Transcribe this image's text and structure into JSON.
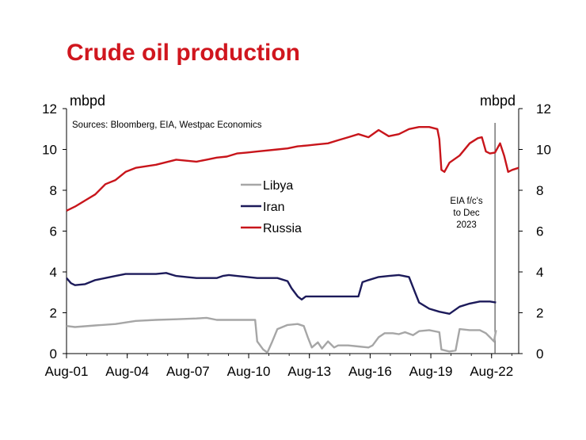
{
  "chart_data": {
    "type": "line",
    "title": "Crude oil production",
    "units_left": "mbpd",
    "units_right": "mbpd",
    "source": "Sources: Bloomberg, EIA, Westpac Economics",
    "annotation": [
      "EIA f/c's",
      "to Dec",
      "2023"
    ],
    "forecast_start": 2022.75,
    "ylim": [
      0,
      12
    ],
    "yticks": [
      "0",
      "2",
      "4",
      "6",
      "8",
      "10",
      "12"
    ],
    "xlim": [
      2001.58,
      2023.92
    ],
    "xticks": [
      {
        "label": "Aug-01",
        "x": 2001.58
      },
      {
        "label": "Aug-04",
        "x": 2004.58
      },
      {
        "label": "Aug-07",
        "x": 2007.58
      },
      {
        "label": "Aug-10",
        "x": 2010.58
      },
      {
        "label": "Aug-13",
        "x": 2013.58
      },
      {
        "label": "Aug-16",
        "x": 2016.58
      },
      {
        "label": "Aug-19",
        "x": 2019.58
      },
      {
        "label": "Aug-22",
        "x": 2022.58
      }
    ],
    "legend": {
      "placement": "center"
    },
    "series": [
      {
        "name": "Libya",
        "color": "#a6a6a6",
        "points": [
          [
            2001.58,
            1.35
          ],
          [
            2002.0,
            1.3
          ],
          [
            2003.0,
            1.38
          ],
          [
            2004.0,
            1.45
          ],
          [
            2005.0,
            1.6
          ],
          [
            2006.0,
            1.65
          ],
          [
            2007.0,
            1.68
          ],
          [
            2008.0,
            1.72
          ],
          [
            2008.5,
            1.75
          ],
          [
            2009.0,
            1.65
          ],
          [
            2010.0,
            1.65
          ],
          [
            2010.9,
            1.65
          ],
          [
            2011.0,
            0.6
          ],
          [
            2011.3,
            0.2
          ],
          [
            2011.5,
            0.05
          ],
          [
            2011.75,
            0.6
          ],
          [
            2012.0,
            1.2
          ],
          [
            2012.5,
            1.4
          ],
          [
            2013.0,
            1.45
          ],
          [
            2013.3,
            1.35
          ],
          [
            2013.5,
            0.8
          ],
          [
            2013.7,
            0.3
          ],
          [
            2014.0,
            0.55
          ],
          [
            2014.2,
            0.25
          ],
          [
            2014.5,
            0.6
          ],
          [
            2014.8,
            0.3
          ],
          [
            2015.0,
            0.4
          ],
          [
            2015.5,
            0.4
          ],
          [
            2016.0,
            0.35
          ],
          [
            2016.5,
            0.3
          ],
          [
            2016.7,
            0.4
          ],
          [
            2017.0,
            0.8
          ],
          [
            2017.3,
            1.0
          ],
          [
            2017.7,
            1.0
          ],
          [
            2018.0,
            0.95
          ],
          [
            2018.3,
            1.05
          ],
          [
            2018.7,
            0.9
          ],
          [
            2019.0,
            1.1
          ],
          [
            2019.5,
            1.15
          ],
          [
            2020.0,
            1.05
          ],
          [
            2020.1,
            0.2
          ],
          [
            2020.5,
            0.1
          ],
          [
            2020.8,
            0.15
          ],
          [
            2021.0,
            1.2
          ],
          [
            2021.5,
            1.15
          ],
          [
            2022.0,
            1.15
          ],
          [
            2022.3,
            1.0
          ],
          [
            2022.5,
            0.8
          ],
          [
            2022.7,
            0.6
          ],
          [
            2022.8,
            1.15
          ]
        ]
      },
      {
        "name": "Iran",
        "color": "#1c1a5a",
        "points": [
          [
            2001.58,
            3.7
          ],
          [
            2001.8,
            3.45
          ],
          [
            2002.0,
            3.35
          ],
          [
            2002.5,
            3.4
          ],
          [
            2003.0,
            3.6
          ],
          [
            2003.5,
            3.7
          ],
          [
            2004.0,
            3.8
          ],
          [
            2004.5,
            3.9
          ],
          [
            2005.0,
            3.9
          ],
          [
            2006.0,
            3.9
          ],
          [
            2006.5,
            3.95
          ],
          [
            2007.0,
            3.8
          ],
          [
            2007.5,
            3.75
          ],
          [
            2008.0,
            3.7
          ],
          [
            2009.0,
            3.7
          ],
          [
            2009.3,
            3.8
          ],
          [
            2009.6,
            3.85
          ],
          [
            2010.0,
            3.8
          ],
          [
            2011.0,
            3.7
          ],
          [
            2012.0,
            3.7
          ],
          [
            2012.5,
            3.55
          ],
          [
            2012.7,
            3.2
          ],
          [
            2013.0,
            2.8
          ],
          [
            2013.2,
            2.65
          ],
          [
            2013.4,
            2.8
          ],
          [
            2014.0,
            2.8
          ],
          [
            2015.0,
            2.8
          ],
          [
            2016.0,
            2.8
          ],
          [
            2016.2,
            3.5
          ],
          [
            2016.5,
            3.6
          ],
          [
            2017.0,
            3.75
          ],
          [
            2017.5,
            3.8
          ],
          [
            2018.0,
            3.85
          ],
          [
            2018.5,
            3.75
          ],
          [
            2018.8,
            3.0
          ],
          [
            2019.0,
            2.5
          ],
          [
            2019.5,
            2.2
          ],
          [
            2020.0,
            2.05
          ],
          [
            2020.5,
            1.95
          ],
          [
            2021.0,
            2.3
          ],
          [
            2021.5,
            2.45
          ],
          [
            2022.0,
            2.55
          ],
          [
            2022.5,
            2.55
          ],
          [
            2022.8,
            2.5
          ]
        ]
      },
      {
        "name": "Russia",
        "color": "#c8151b",
        "points": [
          [
            2001.58,
            7.0
          ],
          [
            2002.0,
            7.2
          ],
          [
            2002.5,
            7.5
          ],
          [
            2003.0,
            7.8
          ],
          [
            2003.5,
            8.3
          ],
          [
            2004.0,
            8.5
          ],
          [
            2004.5,
            8.9
          ],
          [
            2005.0,
            9.1
          ],
          [
            2006.0,
            9.25
          ],
          [
            2007.0,
            9.5
          ],
          [
            2007.5,
            9.45
          ],
          [
            2008.0,
            9.4
          ],
          [
            2008.5,
            9.5
          ],
          [
            2009.0,
            9.6
          ],
          [
            2009.5,
            9.65
          ],
          [
            2010.0,
            9.8
          ],
          [
            2010.5,
            9.85
          ],
          [
            2011.0,
            9.9
          ],
          [
            2012.0,
            10.0
          ],
          [
            2012.5,
            10.05
          ],
          [
            2013.0,
            10.15
          ],
          [
            2013.5,
            10.2
          ],
          [
            2014.0,
            10.25
          ],
          [
            2014.5,
            10.3
          ],
          [
            2015.0,
            10.45
          ],
          [
            2015.5,
            10.6
          ],
          [
            2016.0,
            10.75
          ],
          [
            2016.5,
            10.6
          ],
          [
            2017.0,
            10.95
          ],
          [
            2017.5,
            10.65
          ],
          [
            2018.0,
            10.75
          ],
          [
            2018.5,
            11.0
          ],
          [
            2019.0,
            11.1
          ],
          [
            2019.5,
            11.1
          ],
          [
            2019.9,
            11.0
          ],
          [
            2020.0,
            10.5
          ],
          [
            2020.1,
            9.0
          ],
          [
            2020.25,
            8.9
          ],
          [
            2020.5,
            9.35
          ],
          [
            2021.0,
            9.7
          ],
          [
            2021.5,
            10.3
          ],
          [
            2021.9,
            10.55
          ],
          [
            2022.1,
            10.6
          ],
          [
            2022.3,
            9.9
          ],
          [
            2022.5,
            9.8
          ],
          [
            2022.75,
            9.85
          ],
          [
            2023.0,
            10.3
          ],
          [
            2023.2,
            9.7
          ],
          [
            2023.4,
            8.9
          ],
          [
            2023.6,
            9.0
          ],
          [
            2023.92,
            9.1
          ]
        ]
      }
    ]
  }
}
